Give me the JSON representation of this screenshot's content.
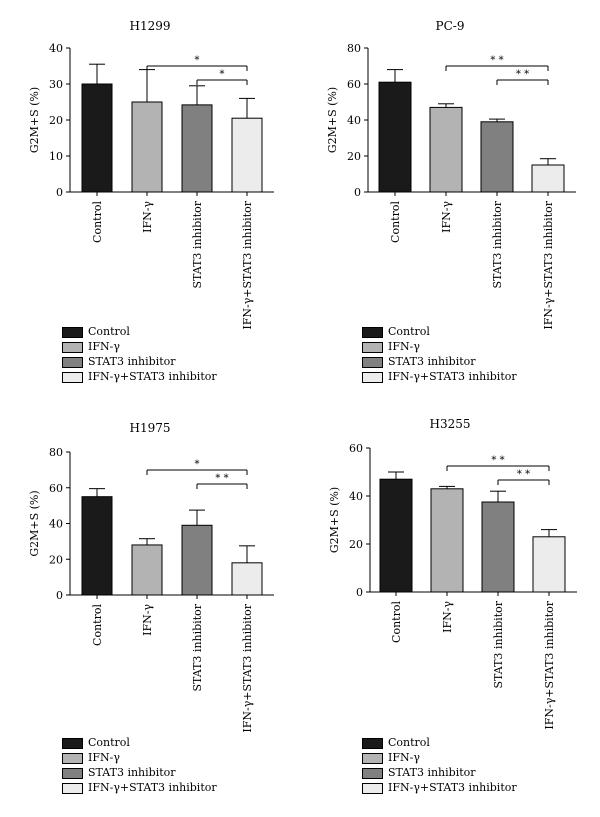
{
  "legend": {
    "items": [
      {
        "label": "Control",
        "color": "#1a1a1a"
      },
      {
        "label": "IFN-γ",
        "color": "#b3b3b3"
      },
      {
        "label": "STAT3 inhibitor",
        "color": "#808080"
      },
      {
        "label": "IFN-γ+STAT3 inhibitor",
        "color": "#ececec"
      }
    ]
  },
  "chart_data": [
    {
      "type": "bar",
      "title": "H1299",
      "ylabel": "G2M+S (%)",
      "ylim": [
        0,
        40
      ],
      "yticks": [
        0,
        10,
        20,
        30,
        40
      ],
      "categories": [
        "Control",
        "IFN-γ",
        "STAT3 inhibitor",
        "IFN-γ+STAT3 inhibitor"
      ],
      "values": [
        30,
        25,
        24.2,
        20.5
      ],
      "errors": [
        5.5,
        9,
        5.3,
        5.5
      ],
      "significance": [
        {
          "from": 1,
          "to": 3,
          "label": "*"
        },
        {
          "from": 2,
          "to": 3,
          "label": "*"
        }
      ]
    },
    {
      "type": "bar",
      "title": "PC-9",
      "ylabel": "G2M+S (%)",
      "ylim": [
        0,
        80
      ],
      "yticks": [
        0,
        20,
        40,
        60,
        80
      ],
      "categories": [
        "Control",
        "IFN-γ",
        "STAT3 inhibitor",
        "IFN-γ+STAT3 inhibitor"
      ],
      "values": [
        61,
        47,
        39,
        15
      ],
      "errors": [
        7,
        2,
        1.5,
        3.5
      ],
      "significance": [
        {
          "from": 1,
          "to": 3,
          "label": "* *"
        },
        {
          "from": 2,
          "to": 3,
          "label": "* *"
        }
      ]
    },
    {
      "type": "bar",
      "title": "H1975",
      "ylabel": "G2M+S (%)",
      "ylim": [
        0,
        80
      ],
      "yticks": [
        0,
        20,
        40,
        60,
        80
      ],
      "categories": [
        "Control",
        "IFN-γ",
        "STAT3 inhibitor",
        "IFN-γ+STAT3 inhibitor"
      ],
      "values": [
        55,
        28,
        39,
        18
      ],
      "errors": [
        4.5,
        3.5,
        8.5,
        9.5
      ],
      "significance": [
        {
          "from": 1,
          "to": 3,
          "label": "*"
        },
        {
          "from": 2,
          "to": 3,
          "label": "* *"
        }
      ]
    },
    {
      "type": "bar",
      "title": "H3255",
      "ylabel": "G2M+S (%)",
      "ylim": [
        0,
        60
      ],
      "yticks": [
        0,
        20,
        40,
        60
      ],
      "categories": [
        "Control",
        "IFN-γ",
        "STAT3 inhibitor",
        "IFN-γ+STAT3 inhibitor"
      ],
      "values": [
        47,
        43,
        37.5,
        23
      ],
      "errors": [
        3,
        1,
        4.5,
        3
      ],
      "significance": [
        {
          "from": 1,
          "to": 3,
          "label": "* *"
        },
        {
          "from": 2,
          "to": 3,
          "label": "* *"
        }
      ]
    }
  ]
}
